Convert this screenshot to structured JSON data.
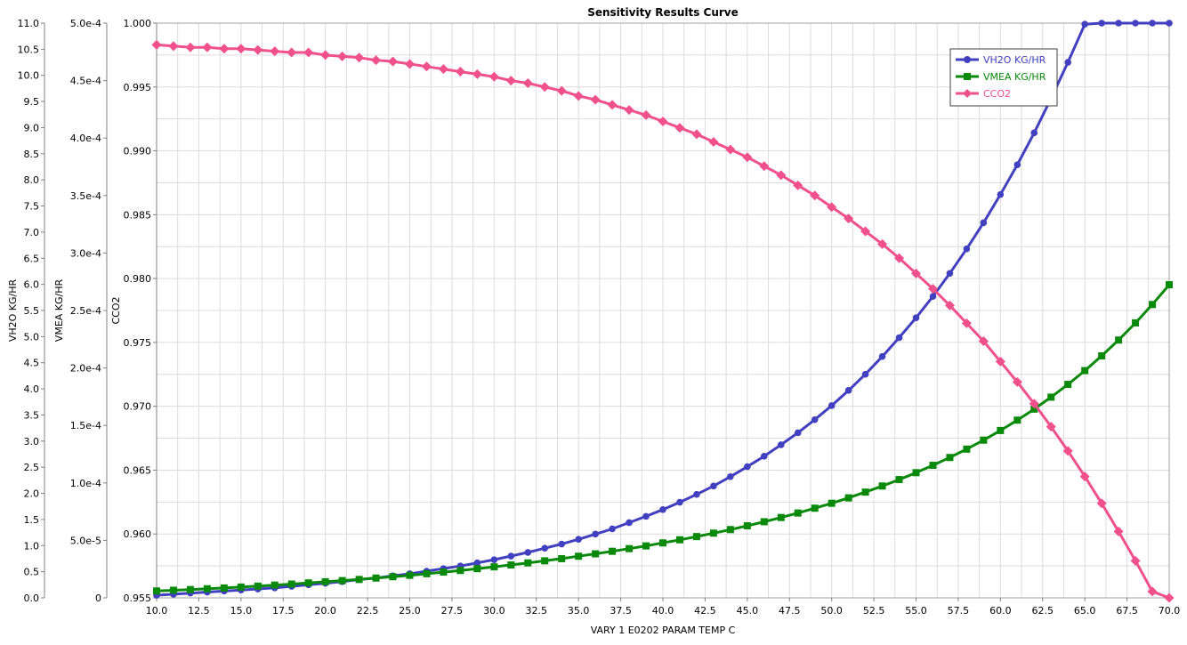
{
  "chart_data": {
    "type": "line",
    "title": "Sensitivity Results Curve",
    "xlabel": "VARY   1 E0202 PARAM TEMP C",
    "xlim": [
      10,
      70
    ],
    "x_ticks": [
      "10.0",
      "12.5",
      "15.0",
      "17.5",
      "20.0",
      "22.5",
      "25.0",
      "27.5",
      "30.0",
      "32.5",
      "35.0",
      "37.5",
      "40.0",
      "42.5",
      "45.0",
      "47.5",
      "50.0",
      "52.5",
      "55.0",
      "57.5",
      "60.0",
      "62.5",
      "65.0",
      "67.5",
      "70.0"
    ],
    "grid": true,
    "legend_position": "top-right",
    "colors": {
      "VH2O KG/HR": "#4040c0",
      "VMEA KG/HR": "#0a8a0a",
      "CCO2": "#f0508c"
    },
    "axes": [
      {
        "name": "VH2O KG/HR",
        "label": "VH2O KG/HR",
        "ylim": [
          0,
          11
        ],
        "ticks": [
          "0.0",
          "0.5",
          "1.0",
          "1.5",
          "2.0",
          "2.5",
          "3.0",
          "3.5",
          "4.0",
          "4.5",
          "5.0",
          "5.5",
          "6.0",
          "6.5",
          "7.0",
          "7.5",
          "8.0",
          "8.5",
          "9.0",
          "9.5",
          "10.0",
          "10.5",
          "11.0"
        ]
      },
      {
        "name": "VMEA KG/HR",
        "label": "VMEA KG/HR",
        "ylim": [
          0,
          0.0005
        ],
        "ticks": [
          "0",
          "5.0e-5",
          "1.0e-4",
          "1.5e-4",
          "2.0e-4",
          "2.5e-4",
          "3.0e-4",
          "3.5e-4",
          "4.0e-4",
          "4.5e-4",
          "5.0e-4"
        ]
      },
      {
        "name": "CCO2",
        "label": "CCO2",
        "ylim": [
          0.955,
          1.0
        ],
        "ticks": [
          "0.955",
          "0.960",
          "0.965",
          "0.970",
          "0.975",
          "0.980",
          "0.985",
          "0.990",
          "0.995",
          "1.000"
        ]
      }
    ],
    "x": [
      10,
      11,
      12,
      13,
      14,
      15,
      16,
      17,
      18,
      19,
      20,
      21,
      22,
      23,
      24,
      25,
      26,
      27,
      28,
      29,
      30,
      31,
      32,
      33,
      34,
      35,
      36,
      37,
      38,
      39,
      40,
      41,
      42,
      43,
      44,
      45,
      46,
      47,
      48,
      49,
      50,
      51,
      52,
      53,
      54,
      55,
      56,
      57,
      58,
      59,
      60,
      61,
      62,
      63,
      64,
      65,
      66,
      67,
      68,
      69,
      70
    ],
    "series": [
      {
        "name": "VH2O KG/HR",
        "axis": 0,
        "marker": "circle",
        "values": [
          0.05,
          0.07,
          0.09,
          0.11,
          0.13,
          0.15,
          0.17,
          0.19,
          0.22,
          0.25,
          0.28,
          0.31,
          0.35,
          0.38,
          0.42,
          0.46,
          0.51,
          0.56,
          0.61,
          0.67,
          0.73,
          0.8,
          0.87,
          0.95,
          1.03,
          1.12,
          1.22,
          1.32,
          1.44,
          1.56,
          1.69,
          1.83,
          1.98,
          2.14,
          2.32,
          2.51,
          2.71,
          2.93,
          3.16,
          3.41,
          3.68,
          3.97,
          4.28,
          4.62,
          4.98,
          5.36,
          5.77,
          6.21,
          6.68,
          7.18,
          7.72,
          8.29,
          8.9,
          9.56,
          10.25,
          10.98,
          11.0,
          11.0,
          11.0,
          11.0,
          11.0
        ]
      },
      {
        "name": "VMEA KG/HR",
        "axis": 1,
        "marker": "square",
        "values": [
          6e-06,
          6.6e-06,
          7.2e-06,
          7.9e-06,
          8.6e-06,
          9.4e-06,
          1.02e-05,
          1.11e-05,
          1.2e-05,
          1.3e-05,
          1.4e-05,
          1.5e-05,
          1.6e-05,
          1.72e-05,
          1.84e-05,
          1.96e-05,
          2.1e-05,
          2.24e-05,
          2.38e-05,
          2.54e-05,
          2.7e-05,
          2.86e-05,
          3.04e-05,
          3.22e-05,
          3.41e-05,
          3.62e-05,
          3.83e-05,
          4.05e-05,
          4.28e-05,
          4.52e-05,
          4.78e-05,
          5.05e-05,
          5.33e-05,
          5.63e-05,
          5.94e-05,
          6.27e-05,
          6.62e-05,
          6.99e-05,
          7.38e-05,
          7.8e-05,
          8.23e-05,
          8.7e-05,
          9.2e-05,
          9.73e-05,
          0.0001029,
          0.0001089,
          0.0001153,
          0.0001221,
          0.0001294,
          0.0001372,
          0.0001456,
          0.0001546,
          0.0001642,
          0.0001746,
          0.0001857,
          0.0001977,
          0.0002105,
          0.0002243,
          0.0002392,
          0.0002552,
          0.0002724
        ]
      },
      {
        "name": "CCO2",
        "axis": 2,
        "marker": "diamond",
        "values": [
          0.9983,
          0.9982,
          0.9981,
          0.9981,
          0.998,
          0.998,
          0.9979,
          0.9978,
          0.9977,
          0.9977,
          0.9975,
          0.9974,
          0.9973,
          0.9971,
          0.997,
          0.9968,
          0.9966,
          0.9964,
          0.9962,
          0.996,
          0.9958,
          0.9955,
          0.9953,
          0.995,
          0.9947,
          0.9943,
          0.994,
          0.9936,
          0.9932,
          0.9928,
          0.9923,
          0.9918,
          0.9913,
          0.9907,
          0.9901,
          0.9895,
          0.9888,
          0.9881,
          0.9873,
          0.9865,
          0.9856,
          0.9847,
          0.9837,
          0.9827,
          0.9816,
          0.9804,
          0.9792,
          0.9779,
          0.9765,
          0.9751,
          0.9735,
          0.9719,
          0.9702,
          0.9684,
          0.9665,
          0.9645,
          0.9624,
          0.9602,
          0.9579,
          0.9555,
          0.953
        ]
      }
    ]
  }
}
